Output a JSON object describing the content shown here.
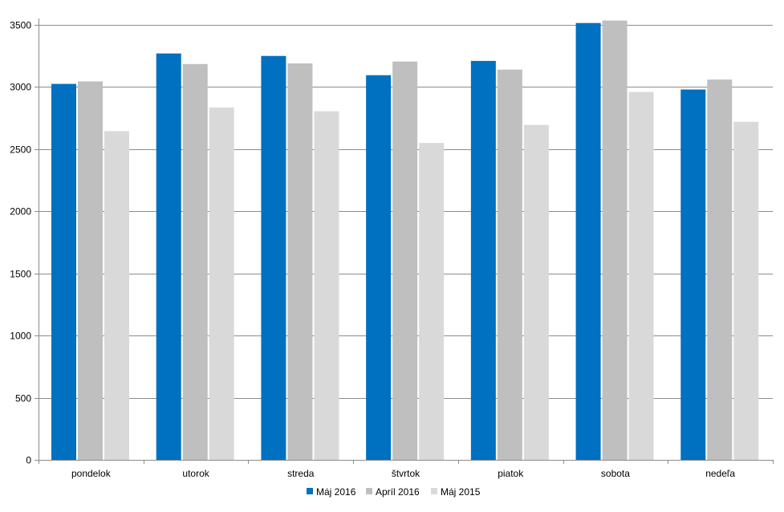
{
  "chart_data": {
    "type": "bar",
    "title": "",
    "xlabel": "",
    "ylabel": "",
    "categories": [
      "pondelok",
      "utorok",
      "streda",
      "štvrtok",
      "piatok",
      "sobota",
      "nedeľa"
    ],
    "series": [
      {
        "name": "Máj 2016",
        "color": "#0070C0",
        "values": [
          3025,
          3270,
          3250,
          3095,
          3210,
          3515,
          2980
        ]
      },
      {
        "name": "Apríl 2016",
        "color": "#BFBFBF",
        "values": [
          3045,
          3185,
          3190,
          3205,
          3140,
          3535,
          3060
        ]
      },
      {
        "name": "Máj 2015",
        "color": "#D9D9D9",
        "values": [
          2645,
          2835,
          2805,
          2550,
          2695,
          2960,
          2720
        ]
      }
    ],
    "ylim": [
      0,
      3500
    ],
    "yticks": [
      0,
      500,
      1000,
      1500,
      2000,
      2500,
      3000,
      3500
    ],
    "grid": true,
    "legend_position": "bottom"
  }
}
